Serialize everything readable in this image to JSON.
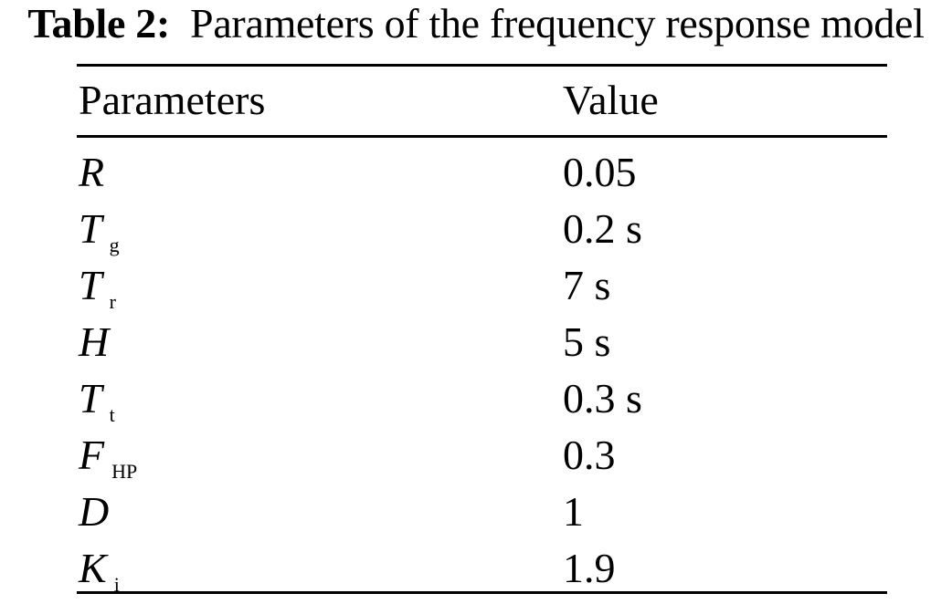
{
  "caption": {
    "label": "Table 2:",
    "text": "Parameters of the frequency response model"
  },
  "table": {
    "headers": [
      "Parameters",
      "Value"
    ],
    "rows": [
      {
        "symbol": "R",
        "subscript": "",
        "value": "0.05"
      },
      {
        "symbol": "T",
        "subscript": "g",
        "value": "0.2 s"
      },
      {
        "symbol": "T",
        "subscript": "r",
        "value": "7 s"
      },
      {
        "symbol": "H",
        "subscript": "",
        "value": "5 s"
      },
      {
        "symbol": "T",
        "subscript": "t",
        "value": "0.3 s"
      },
      {
        "symbol": "F",
        "subscript": "HP",
        "value": "0.3"
      },
      {
        "symbol": "D",
        "subscript": "",
        "value": "1"
      },
      {
        "symbol": "K",
        "subscript": "i",
        "value": "1.9"
      }
    ]
  }
}
